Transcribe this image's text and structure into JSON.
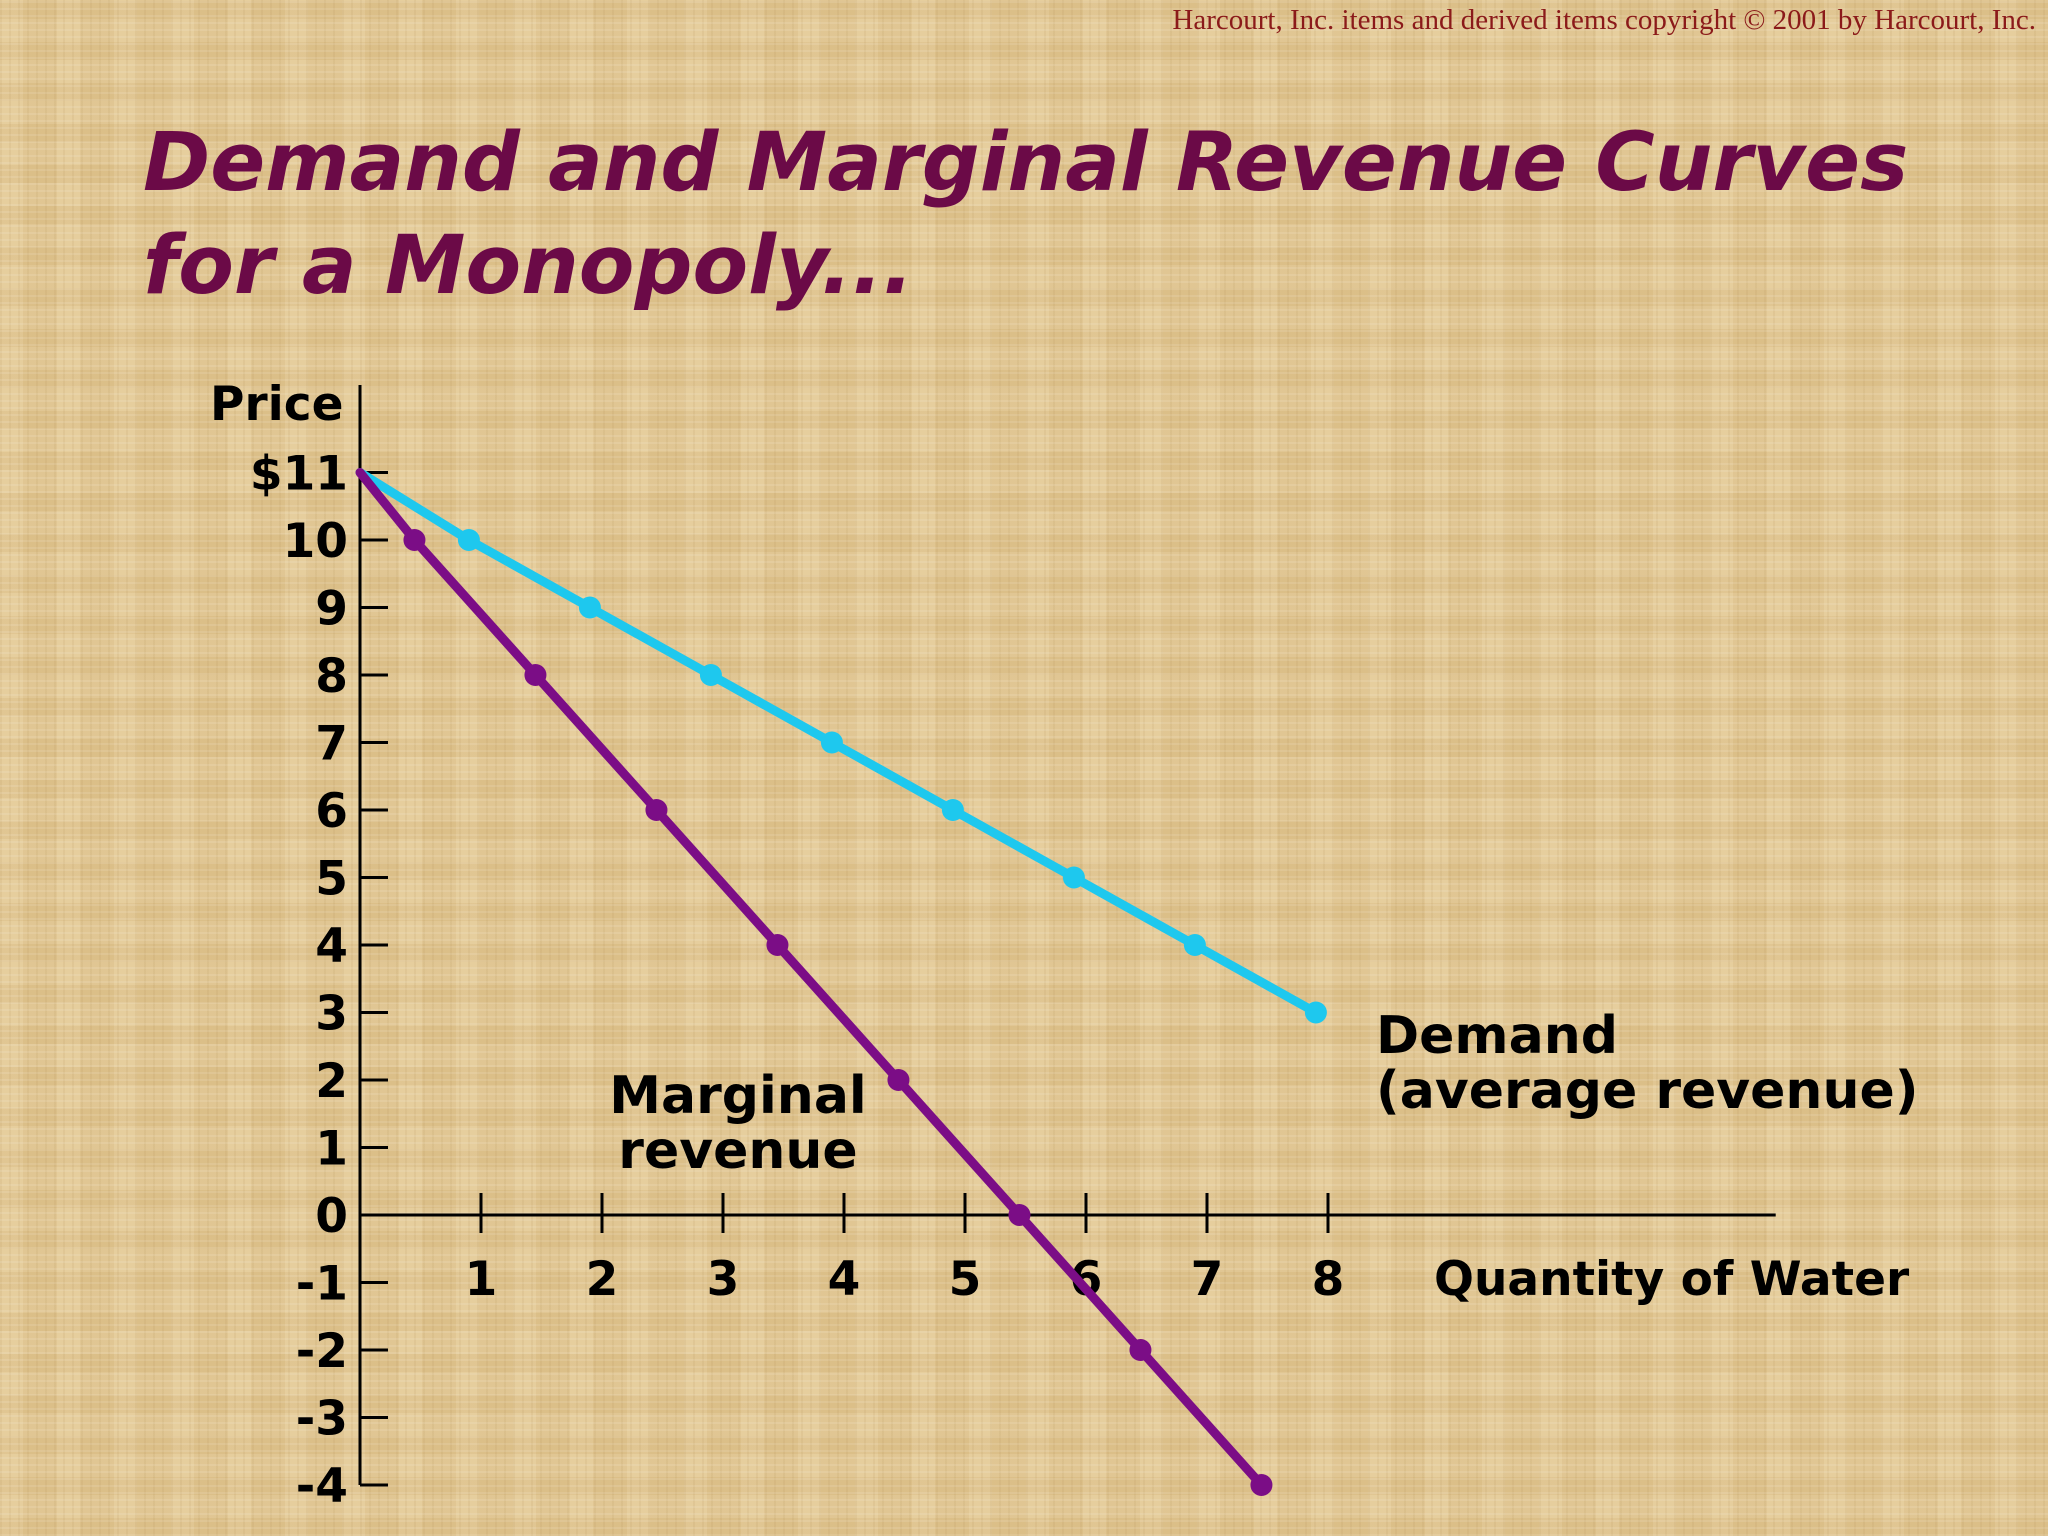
{
  "copyright": "Harcourt, Inc. items and derived items copyright © 2001 by Harcourt, Inc.",
  "title_lines": [
    "Demand and Marginal Revenue Curves",
    "for a Monopoly..."
  ],
  "colors": {
    "title": "#6b0a47",
    "copyright": "#8b1a1a",
    "demand": "#1ec8ee",
    "marginal_revenue": "#7b0d86"
  },
  "chart_data": {
    "type": "line",
    "xlabel": "Quantity of Water",
    "ylabel": "Price",
    "xlim": [
      0,
      11.7
    ],
    "ylim": [
      -4,
      11
    ],
    "x_ticks": [
      1,
      2,
      3,
      4,
      5,
      6,
      7,
      8
    ],
    "y_ticks": [
      11,
      10,
      9,
      8,
      7,
      6,
      5,
      4,
      3,
      2,
      1,
      0,
      -1,
      -2,
      -3,
      -4
    ],
    "y_tick_labels": [
      "$11",
      "10",
      "9",
      "8",
      "7",
      "6",
      "5",
      "4",
      "3",
      "2",
      "1",
      "0",
      "-1",
      "-2",
      "-3",
      "-4"
    ],
    "grid": false,
    "series": [
      {
        "name": "Demand (average revenue)",
        "label_lines": [
          "Demand",
          "(average revenue)"
        ],
        "color": "#1ec8ee",
        "points": [
          [
            0,
            11
          ],
          [
            0.9,
            10
          ],
          [
            1.9,
            9
          ],
          [
            2.9,
            8
          ],
          [
            3.9,
            7
          ],
          [
            4.9,
            6
          ],
          [
            5.9,
            5
          ],
          [
            6.9,
            4
          ],
          [
            7.9,
            3
          ]
        ]
      },
      {
        "name": "Marginal revenue",
        "label_lines": [
          "Marginal",
          "revenue"
        ],
        "color": "#7b0d86",
        "points": [
          [
            0,
            11
          ],
          [
            0.45,
            10
          ],
          [
            1.45,
            8
          ],
          [
            2.45,
            6
          ],
          [
            3.45,
            4
          ],
          [
            4.45,
            2
          ],
          [
            5.45,
            0
          ],
          [
            6.45,
            -2
          ],
          [
            7.45,
            -4
          ]
        ]
      }
    ]
  }
}
